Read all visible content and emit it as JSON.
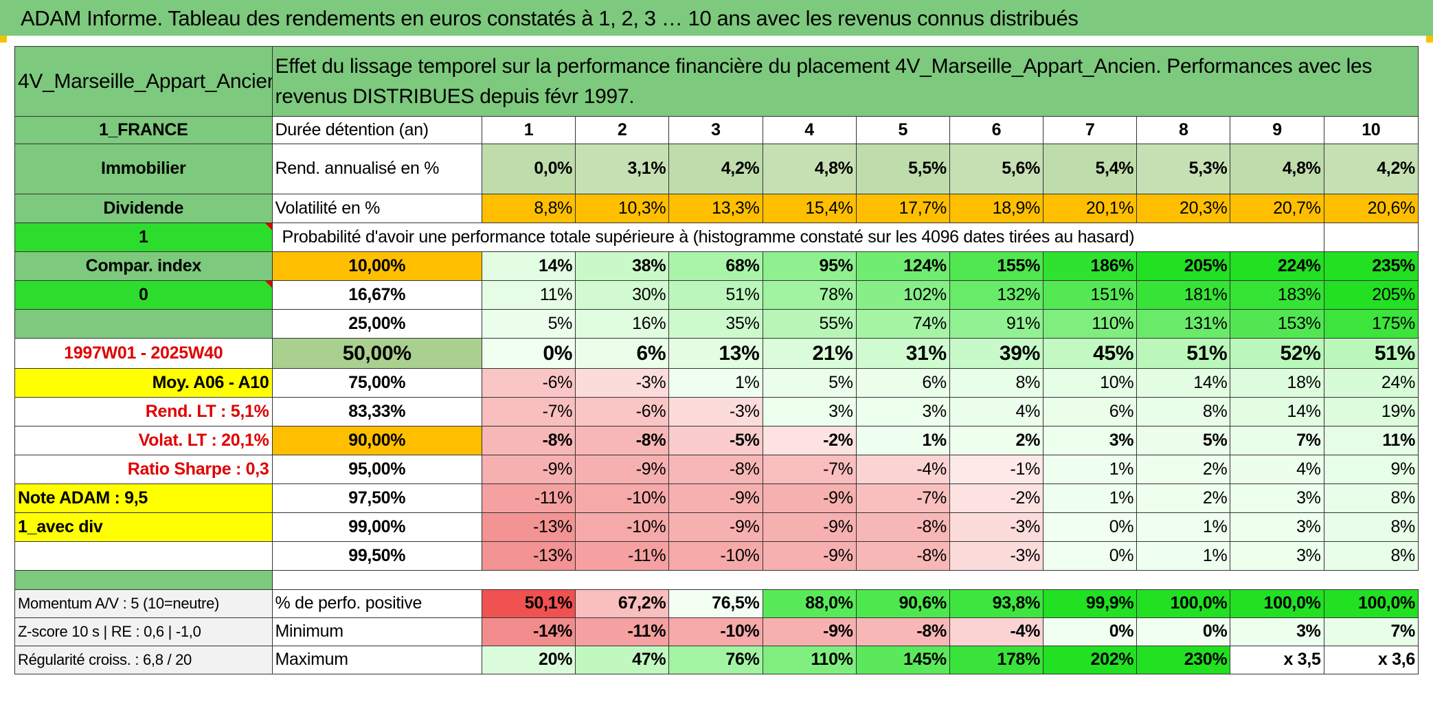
{
  "title": "ADAM Informe. Tableau des rendements en euros constatés à 1, 2, 3 … 10 ans avec les revenus connus distribués",
  "colors": {
    "accent_green": "#7dc97d",
    "bright_green": "#2ddd2d",
    "orange": "#ffbf00",
    "yellow": "#ffff00",
    "red_text": "#e00000"
  },
  "header": {
    "fund_name": "4V_Marseille_Appart_Ancien",
    "description": "Effet du lissage temporel sur la performance financière du placement 4V_Marseille_Appart_Ancien. Performances avec les revenus DISTRIBUES depuis févr 1997."
  },
  "side": {
    "country": "1_FRANCE",
    "category": "Immobilier",
    "income": "Dividende",
    "flag1": "1",
    "compar_index": "Compar. index",
    "flag2": "0",
    "period": "1997W01 - 2025W40",
    "avg": "Moy. A06 - A10",
    "rend_lt": "Rend. LT :   5,1%",
    "volat_lt": "Volat. LT :   20,1%",
    "sharpe": "Ratio Sharpe :    0,3",
    "note": "Note ADAM : 9,5",
    "variant": "1_avec div"
  },
  "stats": {
    "duration_label": "Durée détention (an)",
    "years": [
      "1",
      "2",
      "3",
      "4",
      "5",
      "6",
      "7",
      "8",
      "9",
      "10"
    ],
    "rend_label": "Rend. annualisé en %",
    "rend": [
      "0,0%",
      "3,1%",
      "4,2%",
      "4,8%",
      "5,5%",
      "5,6%",
      "5,4%",
      "5,3%",
      "4,8%",
      "4,2%"
    ],
    "vol_label": "Volatilité en %",
    "vol": [
      "8,8%",
      "10,3%",
      "13,3%",
      "15,4%",
      "17,7%",
      "18,9%",
      "20,1%",
      "20,3%",
      "20,7%",
      "20,6%"
    ]
  },
  "prob_title": "Probabilité d'avoir une performance totale supérieure à (histogramme constaté sur les 4096 dates tirées au hasard)",
  "prob_rows": [
    {
      "p": "10,00%",
      "v": [
        "14%",
        "38%",
        "68%",
        "95%",
        "124%",
        "155%",
        "186%",
        "205%",
        "224%",
        "235%"
      ]
    },
    {
      "p": "16,67%",
      "v": [
        "11%",
        "30%",
        "51%",
        "78%",
        "102%",
        "132%",
        "151%",
        "181%",
        "183%",
        "205%"
      ]
    },
    {
      "p": "25,00%",
      "v": [
        "5%",
        "16%",
        "35%",
        "55%",
        "74%",
        "91%",
        "110%",
        "131%",
        "153%",
        "175%"
      ]
    },
    {
      "p": "50,00%",
      "v": [
        "0%",
        "6%",
        "13%",
        "21%",
        "31%",
        "39%",
        "45%",
        "51%",
        "52%",
        "51%"
      ]
    },
    {
      "p": "75,00%",
      "v": [
        "-6%",
        "-3%",
        "1%",
        "5%",
        "6%",
        "8%",
        "10%",
        "14%",
        "18%",
        "24%"
      ]
    },
    {
      "p": "83,33%",
      "v": [
        "-7%",
        "-6%",
        "-3%",
        "3%",
        "3%",
        "4%",
        "6%",
        "8%",
        "14%",
        "19%"
      ]
    },
    {
      "p": "90,00%",
      "v": [
        "-8%",
        "-8%",
        "-5%",
        "-2%",
        "1%",
        "2%",
        "3%",
        "5%",
        "7%",
        "11%"
      ]
    },
    {
      "p": "95,00%",
      "v": [
        "-9%",
        "-9%",
        "-8%",
        "-7%",
        "-4%",
        "-1%",
        "1%",
        "2%",
        "4%",
        "9%"
      ]
    },
    {
      "p": "97,50%",
      "v": [
        "-11%",
        "-10%",
        "-9%",
        "-9%",
        "-7%",
        "-2%",
        "1%",
        "2%",
        "3%",
        "8%"
      ]
    },
    {
      "p": "99,00%",
      "v": [
        "-13%",
        "-10%",
        "-9%",
        "-9%",
        "-8%",
        "-3%",
        "0%",
        "1%",
        "3%",
        "8%"
      ]
    },
    {
      "p": "99,50%",
      "v": [
        "-13%",
        "-11%",
        "-10%",
        "-9%",
        "-8%",
        "-3%",
        "0%",
        "1%",
        "3%",
        "8%"
      ]
    }
  ],
  "bottom": {
    "momentum": "Momentum A/V : 5 (10=neutre)",
    "zscore": "Z-score 10 s | RE : 0,6 | -1,0",
    "regularite": "Régularité croiss. : 6,8 / 20",
    "pos_label": "% de perfo. positive",
    "pos": [
      "50,1%",
      "67,2%",
      "76,5%",
      "88,0%",
      "90,6%",
      "93,8%",
      "99,9%",
      "100,0%",
      "100,0%",
      "100,0%"
    ],
    "min_label": "Minimum",
    "min": [
      "-14%",
      "-11%",
      "-10%",
      "-9%",
      "-8%",
      "-4%",
      "0%",
      "0%",
      "3%",
      "7%"
    ],
    "max_label": "Maximum",
    "max": [
      "20%",
      "47%",
      "76%",
      "110%",
      "145%",
      "178%",
      "202%",
      "230%",
      "x 3,5",
      "x 3,6"
    ]
  }
}
